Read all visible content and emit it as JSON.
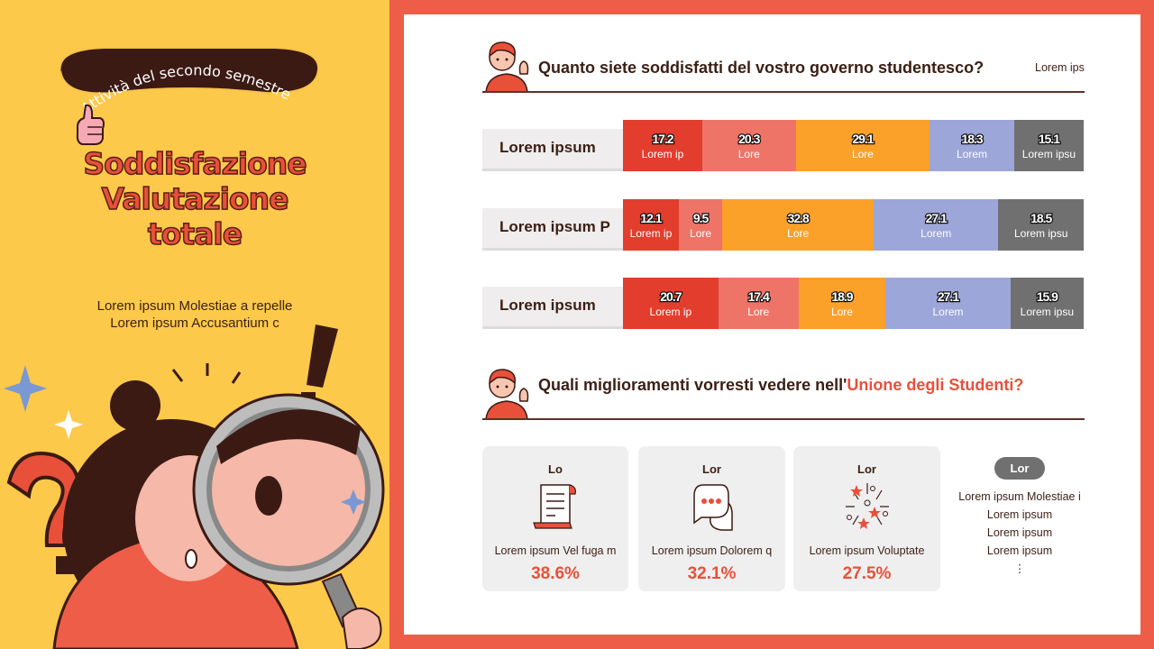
{
  "left": {
    "badge": "Attività del secondo semestre",
    "title_lines": [
      "Soddisfazione",
      "Valutazione",
      "totale"
    ],
    "subtitle_lines": [
      "Lorem ipsum Molestiae a repelle",
      "Lorem ipsum Accusantium c"
    ]
  },
  "section1": {
    "title": "Quanto siete soddisfatti del vostro governo studentesco?",
    "side_note": "Lorem ips"
  },
  "chart_data": {
    "type": "bar",
    "stacked": true,
    "orientation": "horizontal",
    "categories": [
      "Lorem ipsum",
      "Lorem ipsum P",
      "Lorem ipsum"
    ],
    "series": [
      {
        "name": "Lorem ip",
        "segment_labels": [
          "Lorem ip",
          "Lorem ip",
          "Lorem ip"
        ],
        "color": "#E33D2E",
        "values": [
          17.2,
          12.1,
          20.7
        ]
      },
      {
        "name": "Lore",
        "segment_labels": [
          "Lore",
          "Lore",
          "Lore"
        ],
        "color": "#EF7468",
        "values": [
          20.3,
          9.5,
          17.4
        ]
      },
      {
        "name": "Lore",
        "segment_labels": [
          "Lore",
          "Lore",
          "Lore"
        ],
        "color": "#FBA12A",
        "values": [
          29.1,
          32.8,
          18.9
        ]
      },
      {
        "name": "Lorem",
        "segment_labels": [
          "Lorem",
          "Lorem",
          "Lorem"
        ],
        "color": "#9DA6D8",
        "values": [
          18.3,
          27.1,
          27.1
        ]
      },
      {
        "name": "Lorem ipsu",
        "segment_labels": [
          "Lorem ipsu",
          "Lorem ipsu",
          "Lorem ipsu"
        ],
        "color": "#707070",
        "values": [
          15.1,
          18.5,
          15.9
        ]
      }
    ]
  },
  "section2": {
    "title_prefix": "Quali miglioramenti vorresti vedere nell'",
    "title_highlight": "Unione degli Studenti?",
    "highlight_color": "#E8503A",
    "cards": [
      {
        "title": "Lo",
        "icon": "scroll-icon",
        "text": "Lorem ipsum Vel fuga m",
        "percent": "38.6%"
      },
      {
        "title": "Lor",
        "icon": "chat-bubble-icon",
        "text": "Lorem ipsum Dolorem q",
        "percent": "32.1%"
      },
      {
        "title": "Lor",
        "icon": "fireworks-icon",
        "text": "Lorem ipsum Voluptate",
        "percent": "27.5%"
      }
    ],
    "other": {
      "pill": "Lor",
      "items": [
        "Lorem ipsum Molestiae i",
        "Lorem ipsum",
        "Lorem ipsum",
        "Lorem ipsum",
        "⋮"
      ]
    }
  }
}
